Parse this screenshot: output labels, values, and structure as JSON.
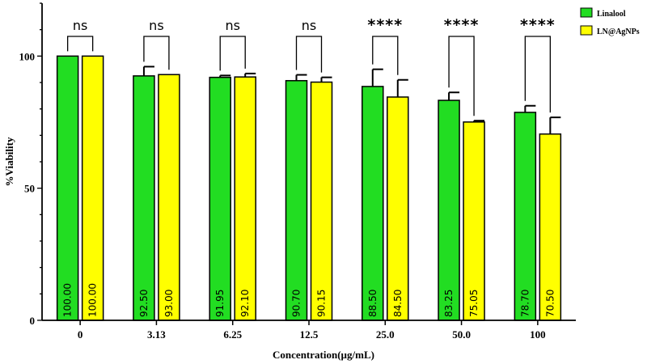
{
  "chart_data": {
    "type": "bar",
    "title": "",
    "xlabel": "Concentration(µg/mL)",
    "ylabel": "%Viability",
    "ylim": [
      0,
      120
    ],
    "yticks": [
      0,
      50,
      100
    ],
    "categories": [
      "0",
      "3.13",
      "6.25",
      "12.5",
      "25.0",
      "50.0",
      "100"
    ],
    "series": [
      {
        "name": "Linalool",
        "color": "#22dd22",
        "values": [
          100.0,
          92.5,
          91.95,
          90.7,
          88.5,
          83.25,
          78.7
        ],
        "value_labels": [
          "100.00",
          "92.50",
          "91.95",
          "90.70",
          "88.50",
          "83.25",
          "78.70"
        ],
        "error": [
          0,
          3.5,
          0.7,
          2.2,
          6.5,
          3.0,
          2.5
        ]
      },
      {
        "name": "LN@AgNPs",
        "color": "#ffff00",
        "values": [
          100.0,
          93.0,
          92.1,
          90.15,
          84.5,
          75.05,
          70.5
        ],
        "value_labels": [
          "100.00",
          "93.00",
          "92.10",
          "90.15",
          "84.50",
          "75.05",
          "70.50"
        ],
        "error": [
          0,
          0,
          1.3,
          1.8,
          6.5,
          0.5,
          6.3
        ]
      }
    ],
    "significance": [
      "ns",
      "ns",
      "ns",
      "ns",
      "****",
      "****",
      "****"
    ],
    "legend_position": "top-right"
  }
}
